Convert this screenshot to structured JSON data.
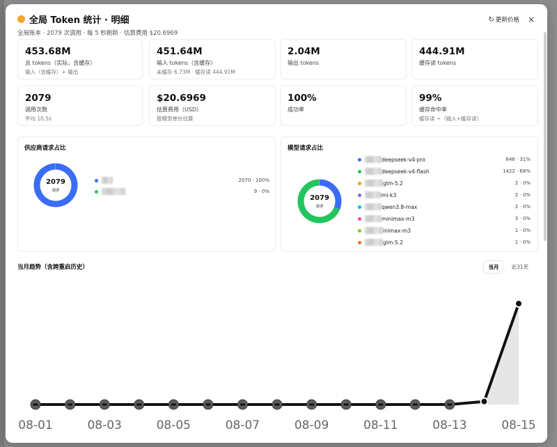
{
  "header": {
    "title": "全局 Token 统计 · 明细",
    "subtitle": "全局账本 · 2079 次调用 · 每 5 秒刷新 · 估算费用 $20.6969",
    "refresh_label": "更新价格",
    "refresh_icon": "↻",
    "close_icon": "×"
  },
  "cards": [
    {
      "value": "453.68M",
      "label": "总 tokens（实际，含缓存）",
      "sub": "输入（含缓存）+ 输出"
    },
    {
      "value": "451.64M",
      "label": "输入 tokens（含缓存）",
      "sub": "未缓存 6.73M · 缓存读 444.91M"
    },
    {
      "value": "2.04M",
      "label": "输出 tokens",
      "sub": ""
    },
    {
      "value": "444.91M",
      "label": "缓存读 tokens",
      "sub": ""
    },
    {
      "value": "2079",
      "label": "调用次数",
      "sub": "平均 10.5s"
    },
    {
      "value": "$20.6969",
      "label": "估算费用（USD）",
      "sub": "按模型单价估算"
    },
    {
      "value": "100%",
      "label": "成功率",
      "sub": ""
    },
    {
      "value": "99%",
      "label": "缓存命中率",
      "sub": "缓存读 ÷（输入+缓存读）"
    }
  ],
  "provider_panel": {
    "title": "供应商请求占比",
    "donut_total": "2079",
    "donut_label": "请求",
    "items": [
      {
        "color": "#3b6cf6",
        "value": 2070,
        "label": "2070 · 100%"
      },
      {
        "color": "#22c55e",
        "value": 9,
        "label": "9 · 0%"
      }
    ]
  },
  "model_panel": {
    "title": "模型请求占比",
    "donut_total": "2079",
    "donut_label": "请求",
    "items": [
      {
        "name": "deepseek-v4-pro",
        "color": "#3b6cf6",
        "value": 646,
        "label": "646 · 31%"
      },
      {
        "name": "deepseek-v4-flash",
        "color": "#22c55e",
        "value": 1422,
        "label": "1422 · 68%"
      },
      {
        "name": "glm-5.2",
        "color": "#f59e0b",
        "value": 2,
        "label": "2 · 0%"
      },
      {
        "name": "imi-k3",
        "color": "#8b5cf6",
        "value": 2,
        "label": "2 · 0%"
      },
      {
        "name": "qwen3.8-max",
        "color": "#06b6d4",
        "value": 2,
        "label": "2 · 0%"
      },
      {
        "name": "minimax-m3",
        "color": "#ec4899",
        "value": 3,
        "label": "3 · 0%"
      },
      {
        "name": "inimax-m3",
        "color": "#84cc16",
        "value": 1,
        "label": "1 · 0%"
      },
      {
        "name": "glm-5.2",
        "color": "#f97316",
        "value": 1,
        "label": "1 · 0%"
      }
    ]
  },
  "trend": {
    "title": "当月趋势（含跨重启历史）",
    "tabs": [
      "当月",
      "近31天"
    ],
    "active_tab": "当月"
  },
  "chart_data": {
    "type": "line",
    "x": [
      "08-01",
      "08-02",
      "08-03",
      "08-04",
      "08-05",
      "08-06",
      "08-07",
      "08-08",
      "08-09",
      "08-10",
      "08-11",
      "08-12",
      "08-13",
      "08-14",
      "08-15"
    ],
    "tick_labels": [
      "08-01",
      "08-03",
      "08-05",
      "08-07",
      "08-09",
      "08-11",
      "08-13",
      "08-15"
    ],
    "values": [
      0,
      0,
      0,
      0,
      0,
      0,
      0,
      0,
      0,
      0,
      0,
      0,
      0,
      3,
      100
    ],
    "y_range": [
      0,
      100
    ],
    "line_color": "#111111",
    "fill_color": "#e6e6e6"
  }
}
